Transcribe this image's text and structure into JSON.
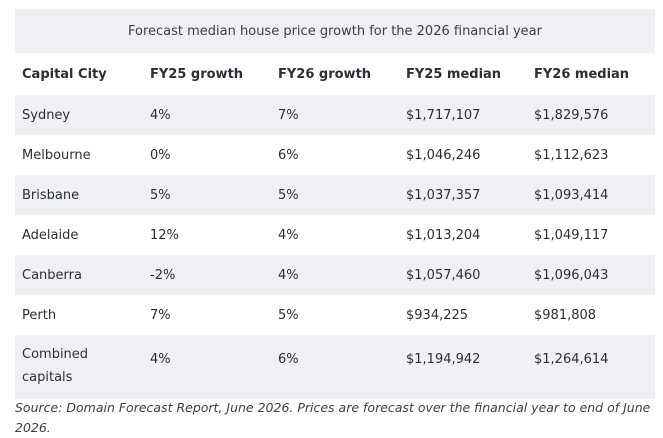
{
  "table": {
    "caption": "Forecast median house price growth for the 2026 financial year",
    "headers": [
      "Capital City",
      "FY25 growth",
      "FY26 growth",
      "FY25 median",
      "FY26 median"
    ],
    "rows": [
      [
        "Sydney",
        "4%",
        "7%",
        "$1,717,107",
        "$1,829,576"
      ],
      [
        "Melbourne",
        "0%",
        "6%",
        "$1,046,246",
        "$1,112,623"
      ],
      [
        "Brisbane",
        "5%",
        "5%",
        "$1,037,357",
        "$1,093,414"
      ],
      [
        "Adelaide",
        "12%",
        "4%",
        "$1,013,204",
        "$1,049,117"
      ],
      [
        "Canberra",
        "-2%",
        "4%",
        "$1,057,460",
        "$1,096,043"
      ],
      [
        "Perth",
        "7%",
        "5%",
        "$934,225",
        "$981,808"
      ],
      [
        "Combined capitals",
        "4%",
        "6%",
        "$1,194,942",
        "$1,264,614"
      ]
    ]
  },
  "source": "Source: Domain Forecast Report, June 2026. Prices are forecast over the financial year to end of June 2026."
}
